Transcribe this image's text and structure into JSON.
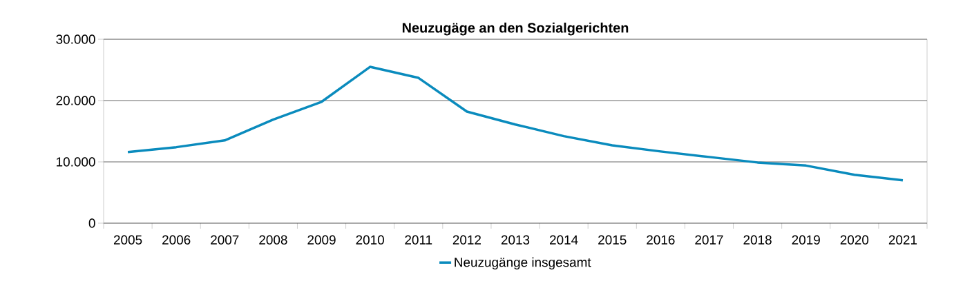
{
  "chart_data": {
    "type": "line",
    "title": "Neuzugäge an den Sozialgerichten",
    "categories": [
      "2005",
      "2006",
      "2007",
      "2008",
      "2009",
      "2010",
      "2011",
      "2012",
      "2013",
      "2014",
      "2015",
      "2016",
      "2017",
      "2018",
      "2019",
      "2020",
      "2021"
    ],
    "series": [
      {
        "name": "Neuzugänge insgesamt",
        "color": "#0a8bbd",
        "values": [
          11600,
          12400,
          13500,
          16900,
          19800,
          25500,
          23700,
          18200,
          16100,
          14200,
          12700,
          11700,
          10800,
          9900,
          9400,
          7900,
          7000
        ]
      }
    ],
    "ylim": [
      0,
      30000
    ],
    "yticks": [
      {
        "value": 0,
        "label": "0"
      },
      {
        "value": 10000,
        "label": "10.000"
      },
      {
        "value": 20000,
        "label": "20.000"
      },
      {
        "value": 30000,
        "label": "30.000"
      }
    ],
    "grid": "y",
    "legend": "bottom",
    "marker": "none",
    "line_style": "solid"
  }
}
